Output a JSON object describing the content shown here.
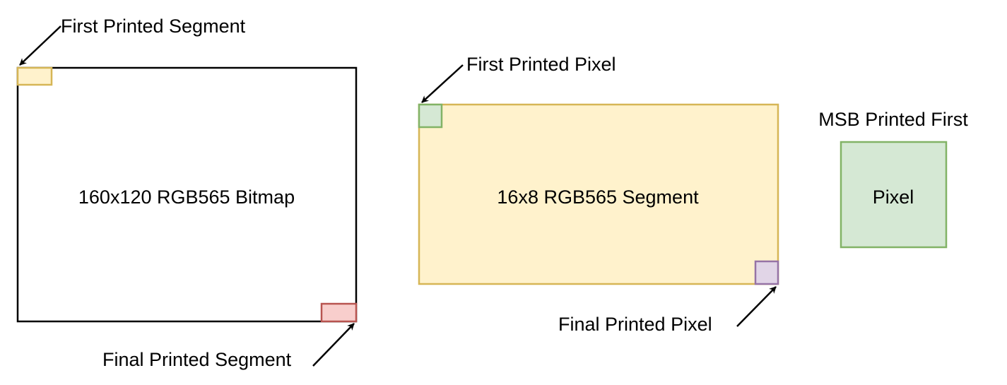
{
  "bitmap": {
    "label": "160x120 RGB565 Bitmap",
    "first_segment_label": "First Printed Segment",
    "final_segment_label": "Final Printed Segment"
  },
  "segment": {
    "label": "16x8 RGB565 Segment",
    "first_pixel_label": "First Printed Pixel",
    "final_pixel_label": "Final Printed Pixel"
  },
  "pixel": {
    "caption": "MSB Printed First",
    "label": "Pixel"
  },
  "colors": {
    "outline": "#000000",
    "segment_fill": "#fff2cc",
    "segment_stroke": "#d6b656",
    "pixel_fill": "#d5e8d4",
    "pixel_stroke": "#82b366",
    "final_segment_fill": "#f8cecc",
    "final_segment_stroke": "#b85450",
    "final_pixel_fill": "#e1d5e7",
    "final_pixel_stroke": "#9673a6"
  },
  "icons": {
    "arrow": "arrow-icon"
  }
}
